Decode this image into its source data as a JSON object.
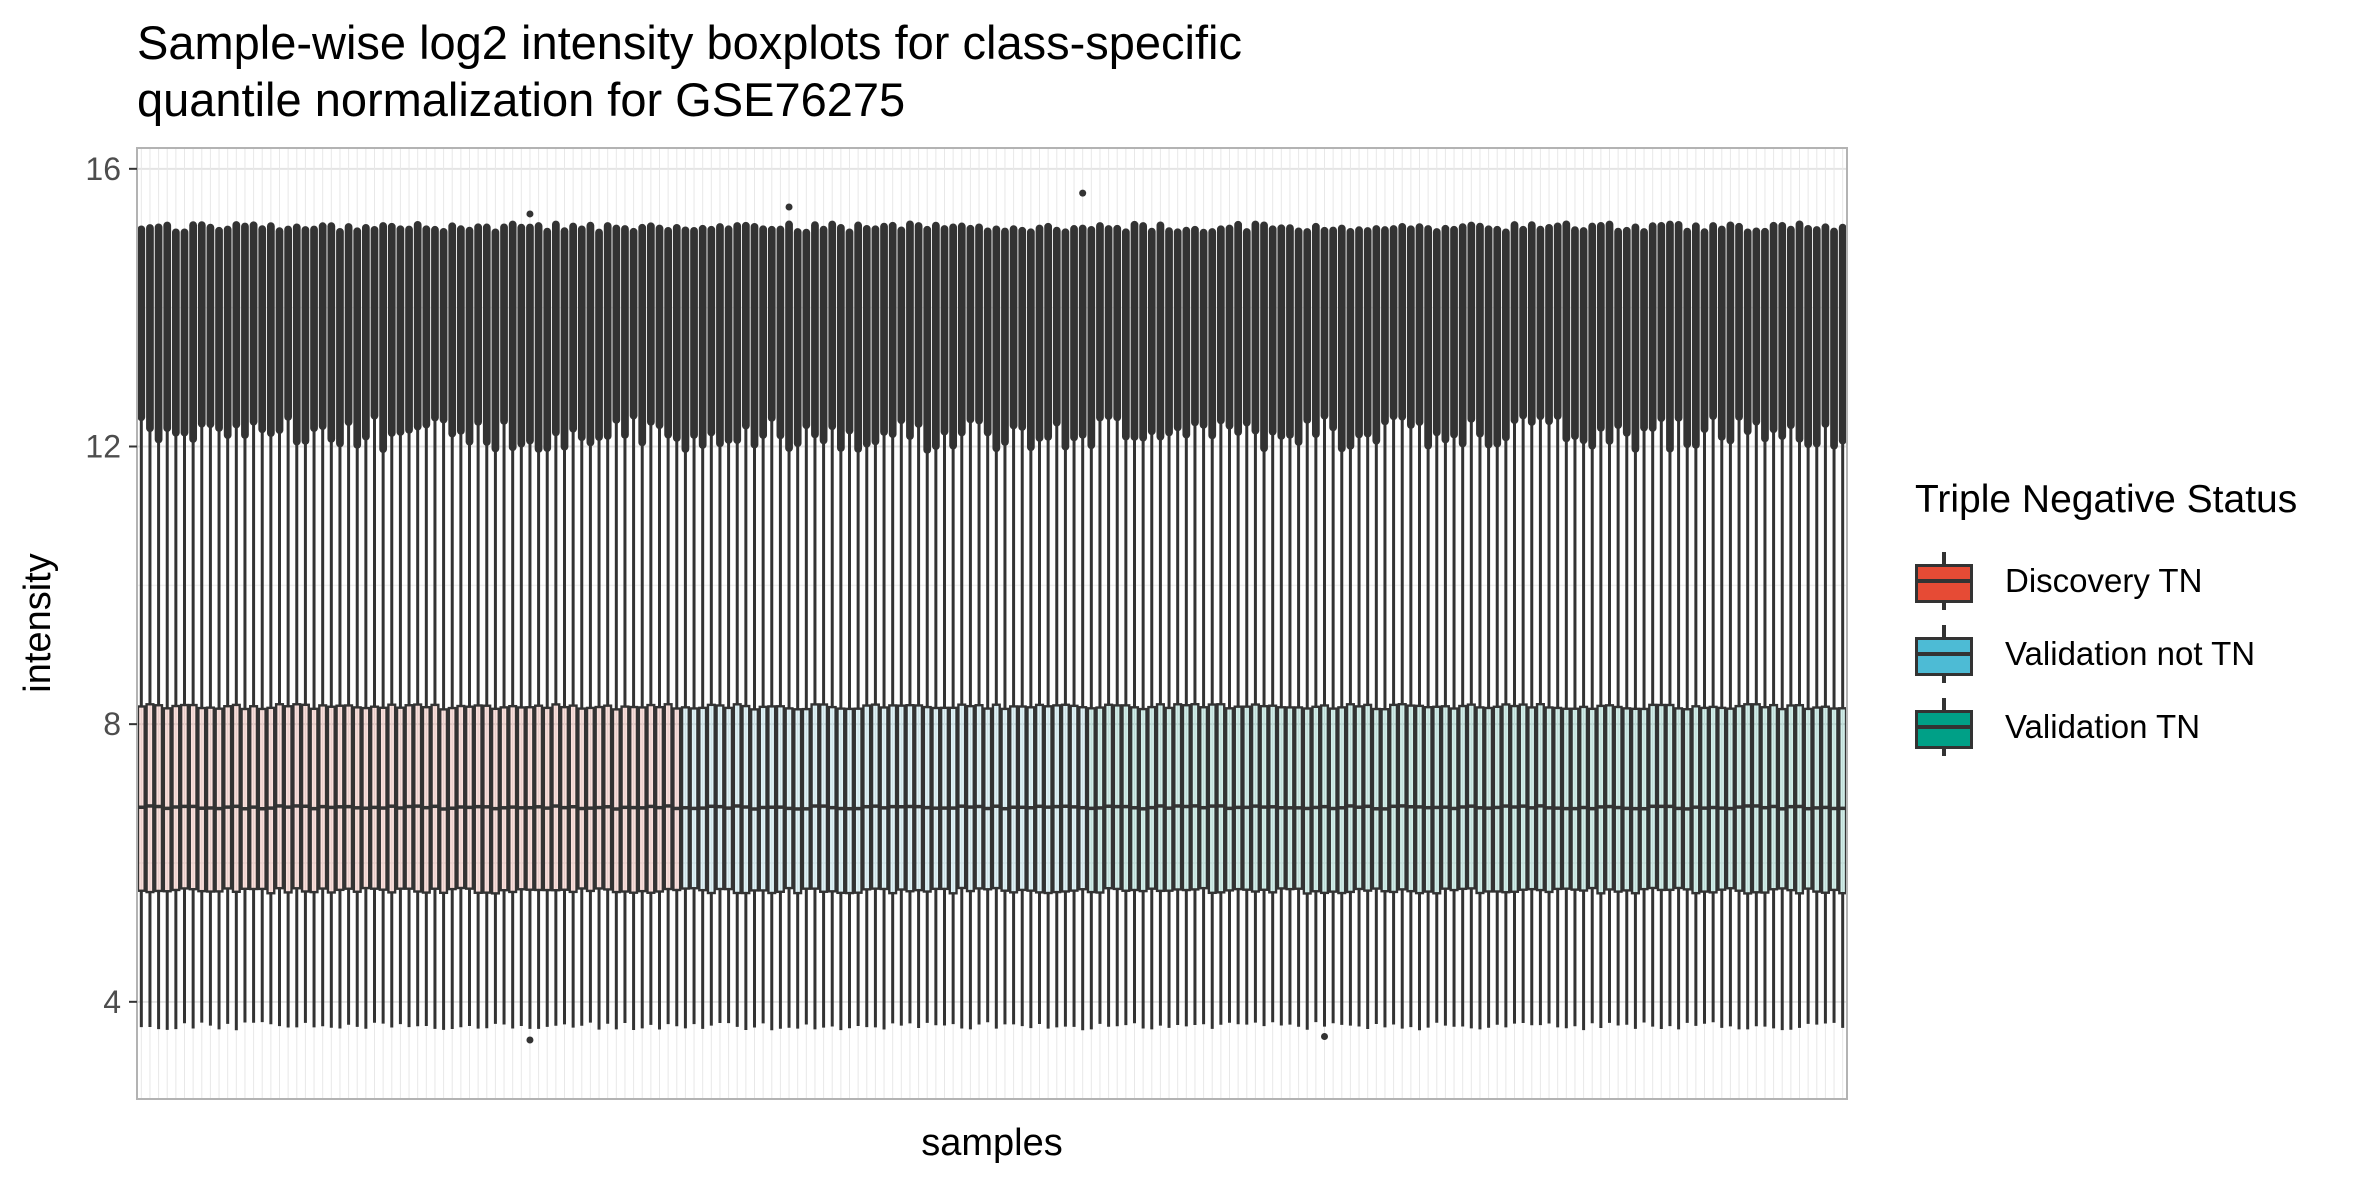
{
  "chart_data": {
    "type": "boxplot",
    "title": "Sample-wise log2 intensity boxplots for class-specific quantile normalization for GSE76275",
    "title_lines": [
      "Sample-wise log2 intensity boxplots for class-specific",
      "quantile normalization for GSE76275"
    ],
    "xlabel": "samples",
    "ylabel": "intensity",
    "ylim": [
      2.6,
      16.3
    ],
    "yticks": [
      "4",
      "8",
      "12",
      "16"
    ],
    "x_tick_labels": "none",
    "grid": true,
    "legend": {
      "title": "Triple Negative Status",
      "placement": "right",
      "entries": [
        {
          "label": "Discovery TN",
          "color": "#E64B35"
        },
        {
          "label": "Validation not TN",
          "color": "#4DBBD5"
        },
        {
          "label": "Validation TN",
          "color": "#00A087"
        }
      ]
    },
    "groups": [
      {
        "name": "Discovery TN",
        "n_samples": 63,
        "color": "#E64B35"
      },
      {
        "name": "Validation not TN",
        "n_samples": 47,
        "color": "#4DBBD5"
      },
      {
        "name": "Validation TN",
        "n_samples": 88,
        "color": "#00A087"
      }
    ],
    "per_sample_summary": {
      "whisker_low": 3.65,
      "q1": 5.6,
      "median": 6.8,
      "q3": 8.25,
      "whisker_high": 12.2,
      "outlier_range": [
        12.2,
        15.2
      ]
    },
    "notable_outliers": [
      {
        "sample_index": 45,
        "value": 15.35
      },
      {
        "sample_index": 75,
        "value": 15.45
      },
      {
        "sample_index": 109,
        "value": 15.65
      },
      {
        "sample_index": 45,
        "value": 3.45
      },
      {
        "sample_index": 137,
        "value": 3.5
      }
    ]
  }
}
